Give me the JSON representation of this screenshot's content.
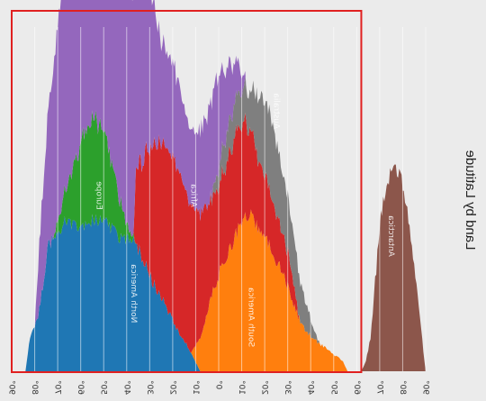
{
  "chart_data": {
    "type": "area",
    "title": "Land by Latitude",
    "xlabel": "",
    "ylabel": "",
    "mirrored": true,
    "x_ticks": [
      "90°",
      "80°",
      "70°",
      "60°",
      "50°",
      "40°",
      "30°",
      "20°",
      "10°",
      "0°",
      "10°",
      "20°",
      "30°",
      "40°",
      "50°",
      "60°",
      "70°",
      "80°",
      "90°"
    ],
    "x_tick_values": [
      -90,
      -80,
      -70,
      -60,
      -50,
      -40,
      -30,
      -20,
      -10,
      0,
      10,
      20,
      30,
      40,
      50,
      60,
      70,
      80,
      90
    ],
    "xlim": [
      -90,
      90
    ],
    "ylim": [
      0,
      100
    ],
    "grid": true,
    "highlight_box": {
      "from_lat": -62,
      "to_lat": 90,
      "color": "#e02020"
    },
    "series_order": [
      "North America",
      "South America",
      "Europe",
      "Africa",
      "Australia",
      "Asia",
      "Antarctica"
    ],
    "series": [
      {
        "name": "North America",
        "color": "#1f77b4",
        "label_lat": 37,
        "label_value": 23,
        "lat": [
          8,
          14,
          18,
          22,
          26,
          30,
          34,
          38,
          42,
          46,
          50,
          54,
          58,
          62,
          66,
          70,
          74,
          78,
          82,
          84
        ],
        "values": [
          0,
          8,
          12,
          18,
          23,
          28,
          35,
          39,
          39,
          42,
          44,
          45,
          44,
          42,
          45,
          40,
          38,
          18,
          10,
          0
        ]
      },
      {
        "name": "South America",
        "color": "#ff7f0e",
        "label_lat": -14,
        "label_value": 16,
        "lat": [
          -56,
          -54,
          -50,
          -46,
          -42,
          -38,
          -34,
          -30,
          -26,
          -22,
          -18,
          -14,
          -10,
          -6,
          -2,
          2,
          6,
          10,
          12
        ],
        "values": [
          0,
          3,
          5,
          7,
          9,
          12,
          17,
          25,
          32,
          37,
          41,
          47,
          44,
          38,
          32,
          25,
          14,
          5,
          0
        ]
      },
      {
        "name": "Europe",
        "color": "#2ca02c",
        "label_lat": 52,
        "label_value": 52,
        "lat": [
          36,
          40,
          44,
          48,
          52,
          56,
          60,
          64,
          68,
          71,
          72
        ],
        "values": [
          0,
          4,
          14,
          22,
          29,
          30,
          25,
          14,
          7,
          2,
          0
        ]
      },
      {
        "name": "Africa",
        "color": "#d62728",
        "label_lat": 11,
        "label_value": 52,
        "lat": [
          -35,
          -32,
          -28,
          -24,
          -20,
          -16,
          -12,
          -8,
          -4,
          0,
          4,
          8,
          12,
          16,
          20,
          24,
          28,
          32,
          36,
          37
        ],
        "values": [
          0,
          8,
          12,
          15,
          18,
          22,
          27,
          30,
          28,
          27,
          30,
          37,
          43,
          48,
          48,
          46,
          42,
          33,
          22,
          0
        ]
      },
      {
        "name": "Australia",
        "color": "#7f7f7f",
        "label_lat": -25,
        "label_value": 77,
        "lat": [
          -44,
          -42,
          -40,
          -38,
          -34,
          -30,
          -26,
          -22,
          -18,
          -14,
          -12,
          -10,
          -6,
          -2,
          2,
          4
        ],
        "values": [
          0,
          2,
          5,
          8,
          14,
          16,
          20,
          24,
          20,
          12,
          10,
          10,
          10,
          8,
          3,
          0
        ]
      },
      {
        "name": "Asia",
        "color": "#9467bd",
        "label_lat": 35,
        "label_value": 115,
        "lat": [
          -12,
          -10,
          -6,
          -2,
          0,
          2,
          6,
          10,
          14,
          18,
          22,
          26,
          30,
          34,
          38,
          42,
          46,
          50,
          54,
          58,
          62,
          66,
          70,
          74,
          78,
          80
        ],
        "values": [
          0,
          6,
          14,
          22,
          28,
          30,
          26,
          22,
          22,
          26,
          28,
          32,
          48,
          62,
          72,
          78,
          76,
          70,
          68,
          72,
          80,
          72,
          58,
          40,
          20,
          0
        ]
      },
      {
        "name": "Antarctica",
        "color": "#8c564b",
        "label_lat": -75,
        "label_value": 40,
        "lat": [
          -90,
          -88,
          -85,
          -82,
          -79,
          -76,
          -73,
          -70,
          -68,
          -66,
          -64,
          -62
        ],
        "values": [
          0,
          12,
          32,
          48,
          58,
          60,
          56,
          44,
          26,
          10,
          3,
          0
        ]
      }
    ]
  }
}
